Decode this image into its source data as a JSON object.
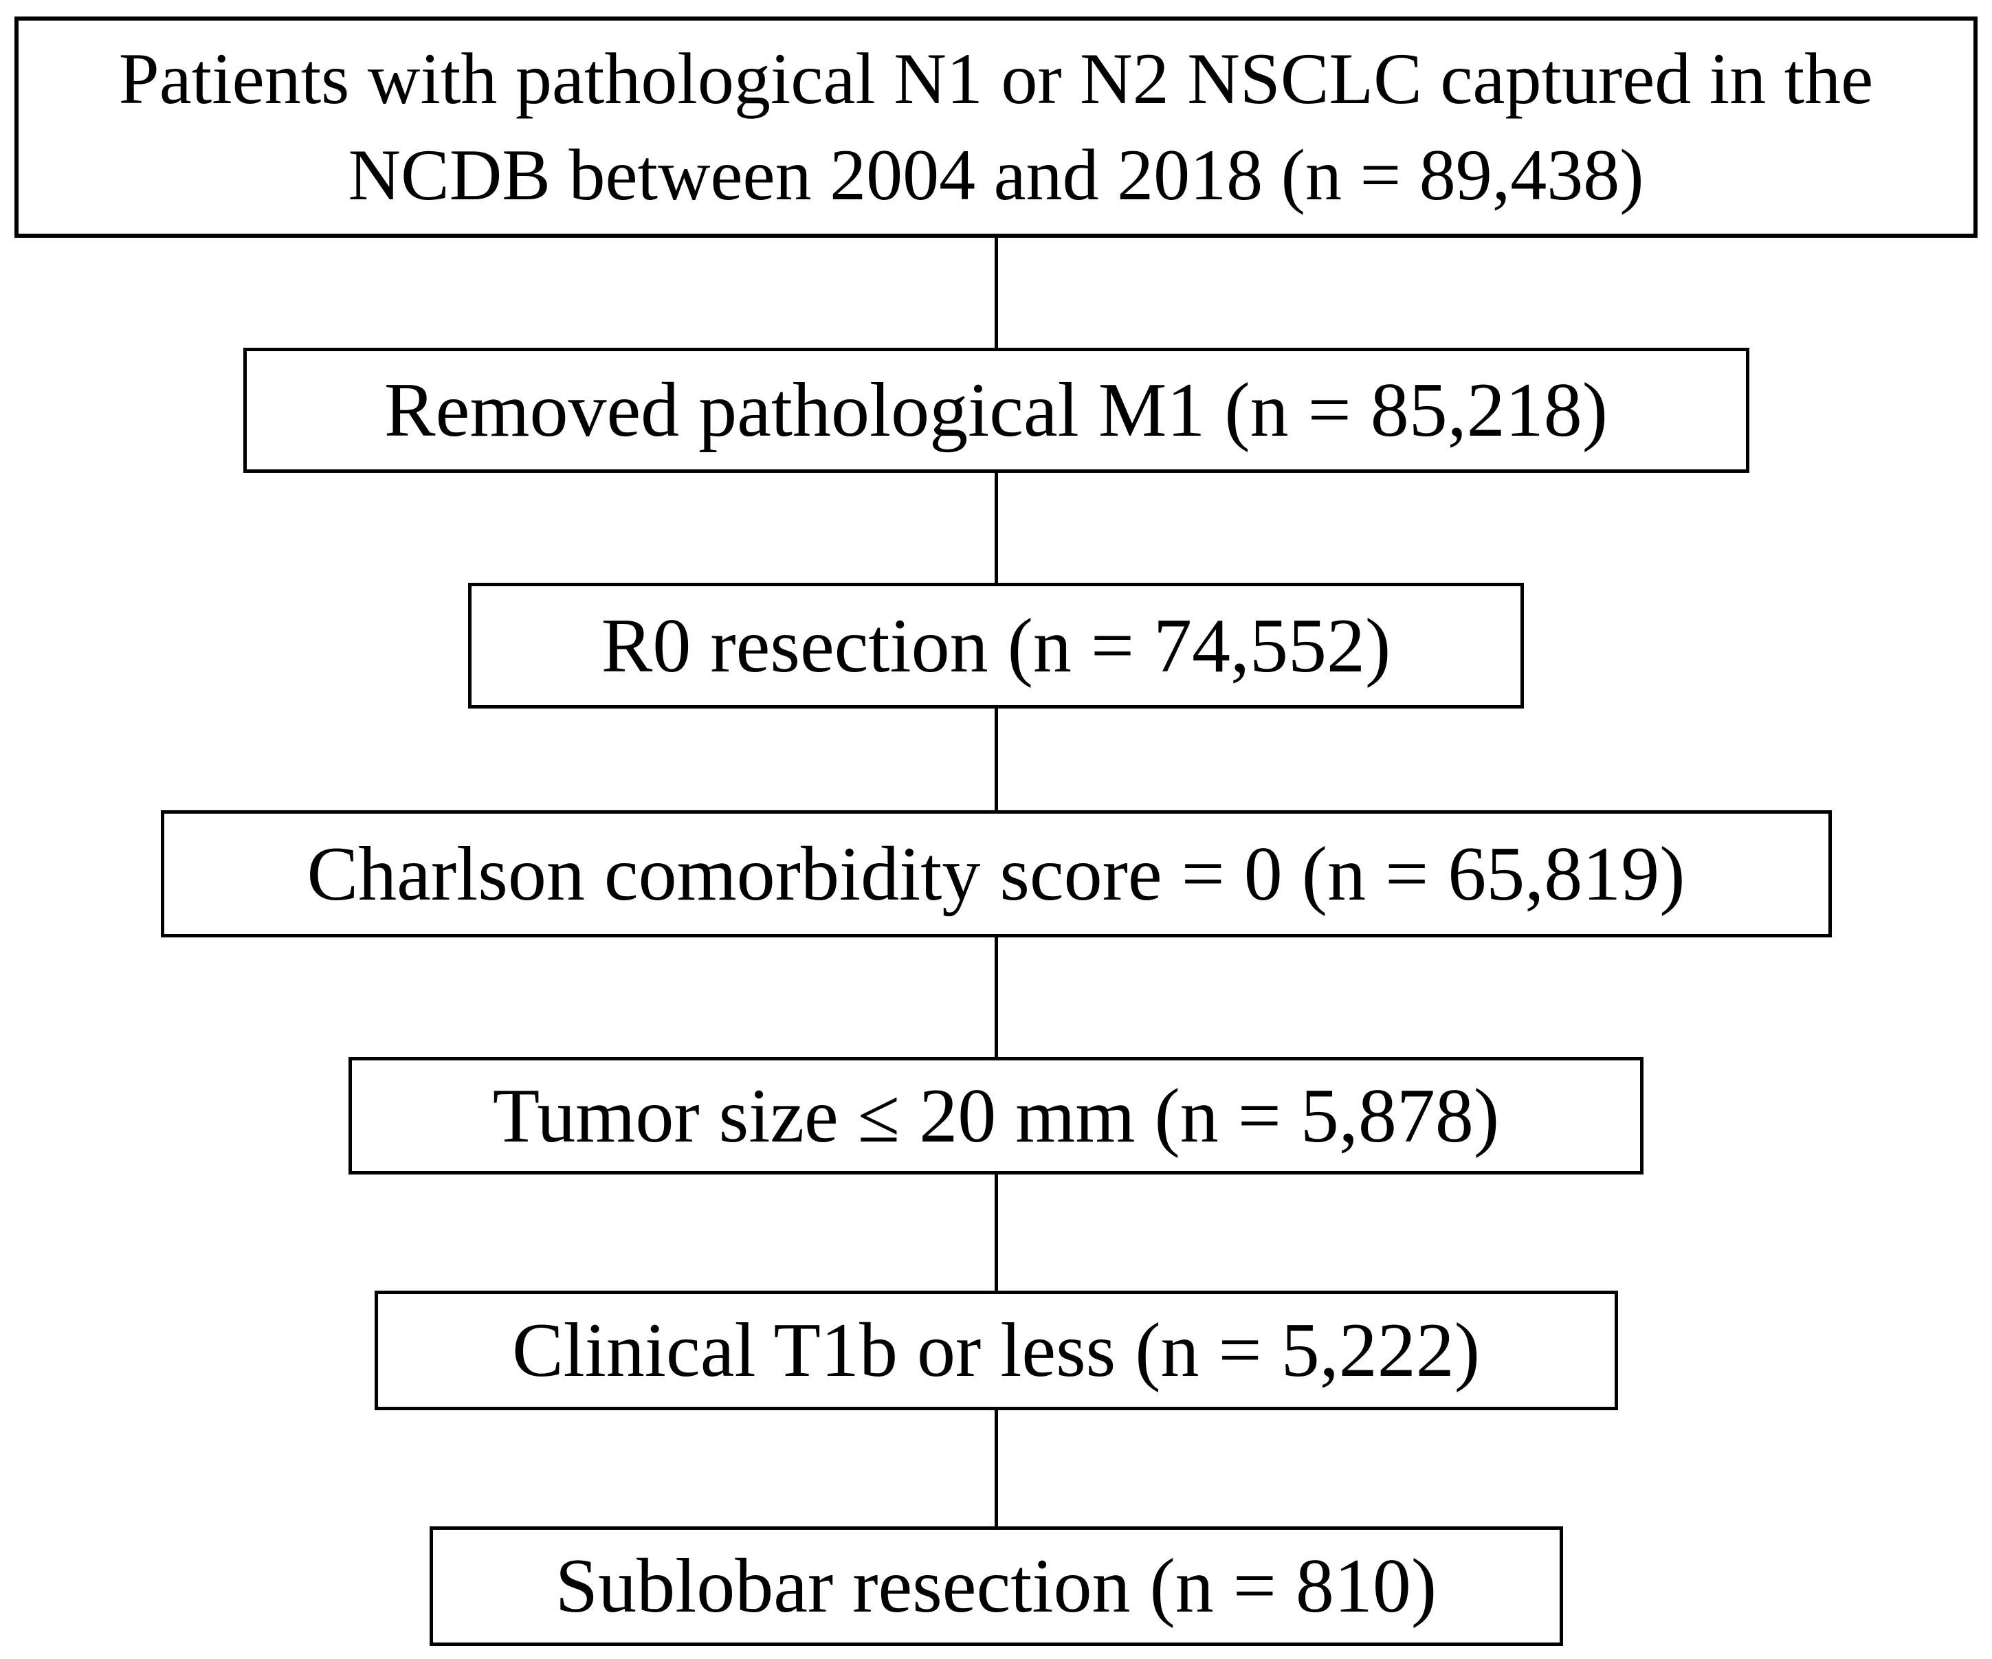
{
  "diagram": {
    "type": "flowchart",
    "direction": "top-down",
    "colors": {
      "box_border": "#000000",
      "box_background": "#ffffff",
      "text": "#000000",
      "page_background": "#ffffff",
      "connector": "#000000"
    },
    "nodes": [
      {
        "id": "initial-cohort",
        "label": "Patients with pathological N1 or N2 NSCLC captured in the NCDB between 2004 and 2018 (n = 89,438)",
        "lines": [
          "Patients with pathological N1 or N2 NSCLC captured in the",
          "NCDB between 2004 and 2018 (n = 89,438)"
        ],
        "n": 89438
      },
      {
        "id": "removed-m1",
        "label": "Removed pathological M1 (n = 85,218)",
        "n": 85218
      },
      {
        "id": "r0-resection",
        "label": "R0 resection (n = 74,552)",
        "n": 74552
      },
      {
        "id": "charlson-0",
        "label": "Charlson comorbidity score = 0 (n = 65,819)",
        "n": 65819
      },
      {
        "id": "tumor-size",
        "label": "Tumor size ≤ 20 mm (n = 5,878)",
        "n": 5878
      },
      {
        "id": "clinical-t1b",
        "label": "Clinical T1b or less (n = 5,222)",
        "n": 5222
      },
      {
        "id": "sublobar",
        "label": "Sublobar resection (n = 810)",
        "n": 810
      }
    ],
    "edges": [
      {
        "from": "initial-cohort",
        "to": "removed-m1"
      },
      {
        "from": "removed-m1",
        "to": "r0-resection"
      },
      {
        "from": "r0-resection",
        "to": "charlson-0"
      },
      {
        "from": "charlson-0",
        "to": "tumor-size"
      },
      {
        "from": "tumor-size",
        "to": "clinical-t1b"
      },
      {
        "from": "clinical-t1b",
        "to": "sublobar"
      }
    ]
  }
}
